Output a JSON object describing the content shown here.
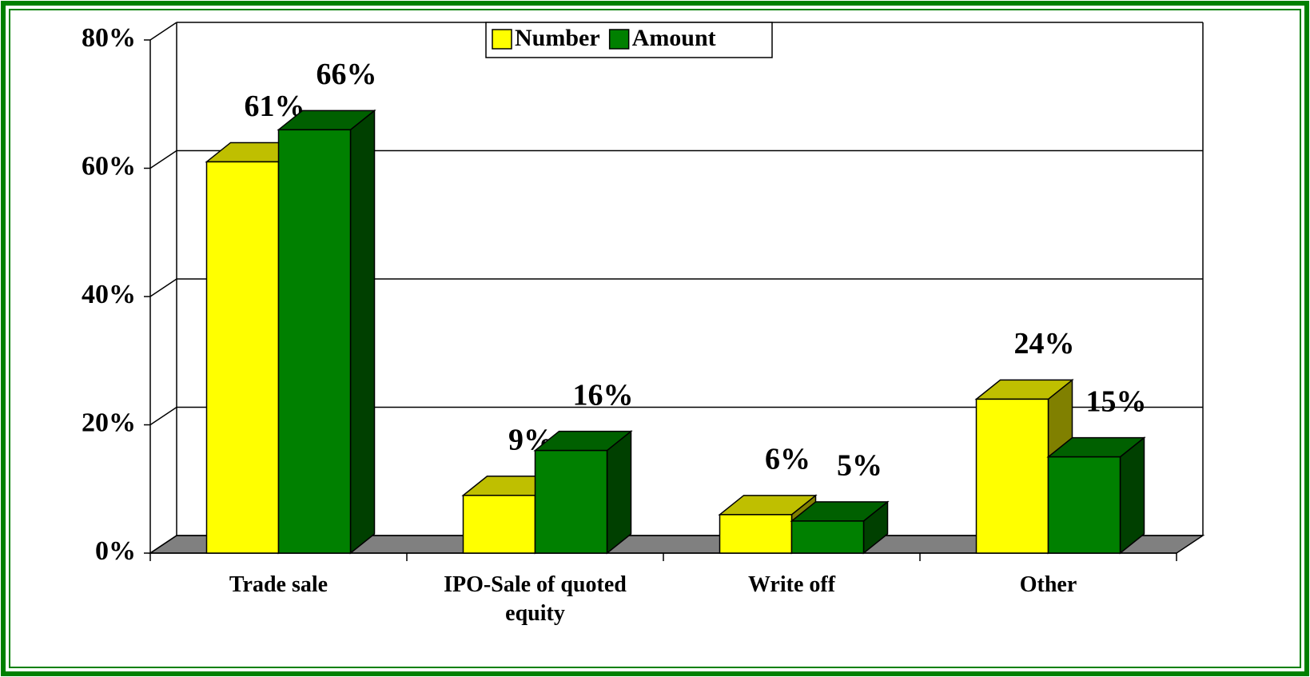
{
  "chart_data": {
    "type": "bar3d",
    "categories": [
      "Trade sale",
      "IPO-Sale of quoted equity",
      "Write off",
      "Other"
    ],
    "series": [
      {
        "name": "Number",
        "color": "#ffff00",
        "values": [
          61,
          9,
          6,
          24
        ],
        "value_labels": [
          "61%",
          "9%",
          "6%",
          "24%"
        ]
      },
      {
        "name": "Amount",
        "color": "#008000",
        "values": [
          66,
          16,
          5,
          15
        ],
        "value_labels": [
          "66%",
          "16%",
          "5%",
          "15%"
        ]
      }
    ],
    "ylim": [
      0,
      80
    ],
    "yticks": [
      {
        "value": 0,
        "label": "0%"
      },
      {
        "value": 20,
        "label": "20%"
      },
      {
        "value": 40,
        "label": "40%"
      },
      {
        "value": 60,
        "label": "60%"
      },
      {
        "value": 80,
        "label": "80%"
      }
    ],
    "grid": true,
    "legend": "top"
  }
}
